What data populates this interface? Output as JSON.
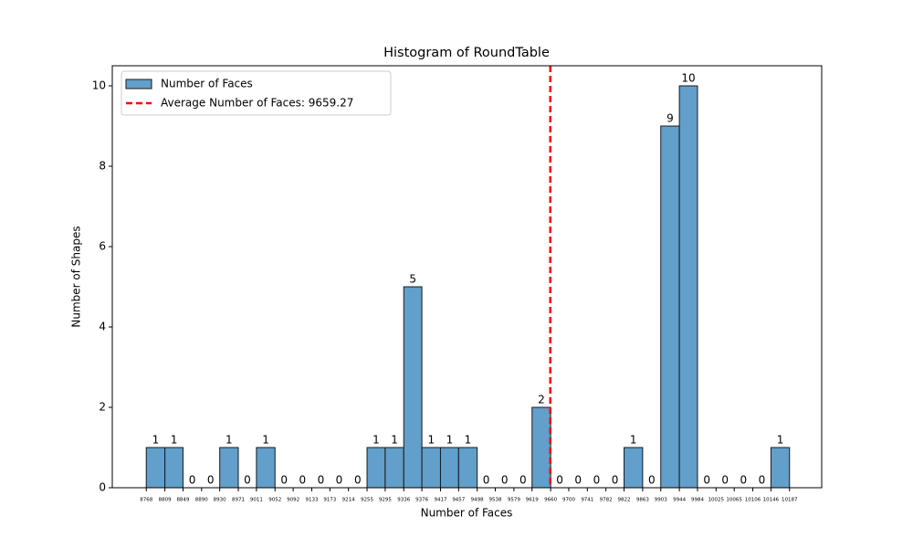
{
  "chart_data": {
    "type": "histogram",
    "title": "Histogram of RoundTable",
    "x_label": "Number of Faces",
    "y_label": "Number of Shapes",
    "series_name": "Number of Faces",
    "color": "#629fca",
    "edge_color": "#1a1a1a",
    "bins": [
      8768,
      8809,
      8849,
      8890,
      8930,
      8971,
      9011,
      9052,
      9092,
      9133,
      9173,
      9214,
      9255,
      9295,
      9336,
      9376,
      9417,
      9457,
      9498,
      9538,
      9579,
      9619,
      9660,
      9700,
      9741,
      9782,
      9822,
      9863,
      9903,
      9944,
      9984,
      10025,
      10065,
      10106,
      10146,
      10187
    ],
    "values": [
      1,
      1,
      0,
      0,
      1,
      0,
      1,
      0,
      0,
      0,
      0,
      0,
      1,
      1,
      5,
      1,
      1,
      1,
      0,
      0,
      0,
      2,
      0,
      0,
      0,
      0,
      1,
      0,
      9,
      10,
      0,
      0,
      0,
      0,
      1
    ],
    "mean": {
      "label": "Average Number of Faces: 9659.27",
      "value": 9659.27,
      "color": "#ff0000"
    },
    "xlim": [
      8693,
      10258
    ],
    "xticks": [
      8768,
      8809,
      8849,
      8890,
      8930,
      8971,
      9011,
      9052,
      9092,
      9133,
      9173,
      9214,
      9255,
      9295,
      9336,
      9376,
      9417,
      9457,
      9498,
      9538,
      9579,
      9619,
      9660,
      9700,
      9741,
      9782,
      9822,
      9863,
      9903,
      9944,
      9984,
      10025,
      10065,
      10106,
      10146,
      10187
    ],
    "ylim": [
      0,
      10.5
    ],
    "yticks": [
      0,
      2,
      4,
      6,
      8,
      10
    ],
    "legend": "upper left"
  }
}
